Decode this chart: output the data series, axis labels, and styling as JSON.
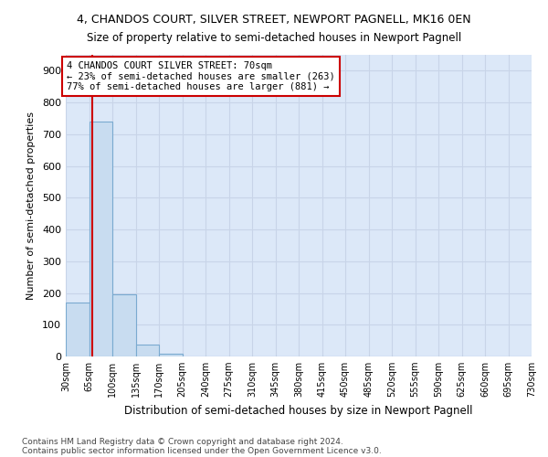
{
  "title1": "4, CHANDOS COURT, SILVER STREET, NEWPORT PAGNELL, MK16 0EN",
  "title2": "Size of property relative to semi-detached houses in Newport Pagnell",
  "xlabel": "Distribution of semi-detached houses by size in Newport Pagnell",
  "ylabel": "Number of semi-detached properties",
  "footnote1": "Contains HM Land Registry data © Crown copyright and database right 2024.",
  "footnote2": "Contains public sector information licensed under the Open Government Licence v3.0.",
  "bar_color": "#c8dcf0",
  "bar_edge_color": "#7aaad0",
  "grid_color": "#c8d4e8",
  "annotation_box_color": "#cc0000",
  "property_line_color": "#cc0000",
  "property_size": 70,
  "annotation_text": "4 CHANDOS COURT SILVER STREET: 70sqm\n← 23% of semi-detached houses are smaller (263)\n77% of semi-detached houses are larger (881) →",
  "bins": [
    30,
    65,
    100,
    135,
    170,
    205,
    240,
    275,
    310,
    345,
    380,
    415,
    450,
    485,
    520,
    555,
    590,
    625,
    660,
    695,
    730
  ],
  "heights": [
    170,
    740,
    195,
    37,
    10,
    0,
    0,
    0,
    0,
    0,
    0,
    0,
    0,
    0,
    0,
    0,
    0,
    0,
    0,
    0
  ],
  "ylim": [
    0,
    950
  ],
  "yticks": [
    0,
    100,
    200,
    300,
    400,
    500,
    600,
    700,
    800,
    900
  ],
  "plot_bg_color": "#dce8f8",
  "fig_bg_color": "#ffffff"
}
